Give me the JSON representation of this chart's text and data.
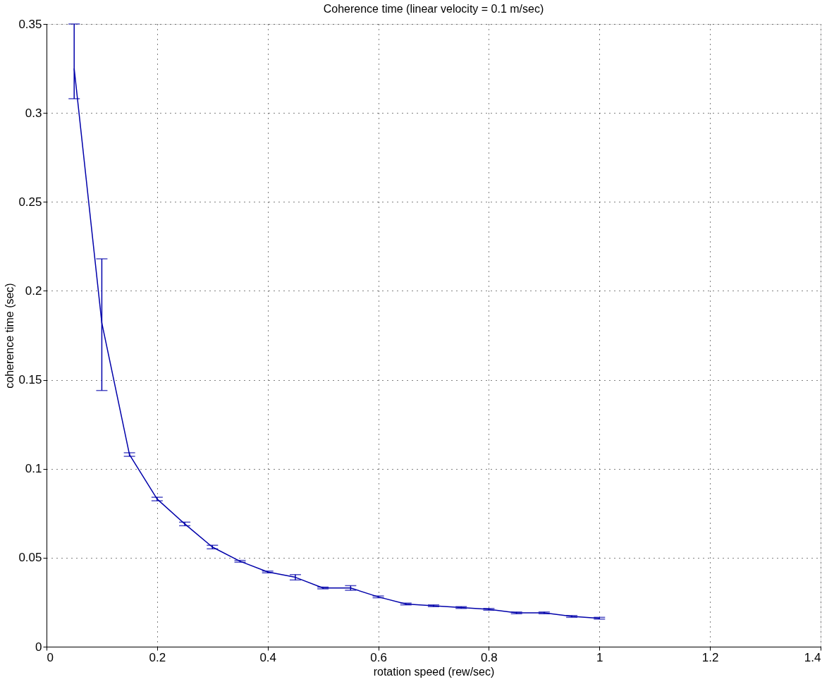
{
  "chart_data": {
    "type": "line",
    "title": "Coherence time (linear velocity = 0.1 m/sec)",
    "xlabel": "rotation speed (rew/sec)",
    "ylabel": "coherence time (sec)",
    "x": [
      0.05,
      0.1,
      0.15,
      0.2,
      0.25,
      0.3,
      0.35,
      0.4,
      0.45,
      0.5,
      0.55,
      0.6,
      0.65,
      0.7,
      0.75,
      0.8,
      0.85,
      0.9,
      0.95,
      1.0
    ],
    "series": [
      {
        "color": "#0000aa",
        "values": [
          0.325,
          0.182,
          0.108,
          0.083,
          0.069,
          0.056,
          0.048,
          0.042,
          0.039,
          0.033,
          0.033,
          0.028,
          0.024,
          0.023,
          0.022,
          0.021,
          0.019,
          0.019,
          0.017,
          0.016
        ],
        "errors": [
          [
            0.308,
            0.35
          ],
          [
            0.144,
            0.218
          ],
          0.001,
          0.001,
          0.001,
          0.001,
          0.0005,
          0.0005,
          0.0015,
          0.0005,
          0.0013,
          0.0005,
          0.0005,
          0.0005,
          0.0005,
          0.0005,
          0.0005,
          0.0005,
          0.0005,
          0.0005
        ]
      }
    ],
    "xlim": [
      0,
      1.4
    ],
    "xticks": [
      0,
      0.2,
      0.4,
      0.6,
      0.8,
      1,
      1.2,
      1.4
    ],
    "ylim": [
      0,
      0.35
    ],
    "yticks": [
      0,
      0.05,
      0.1,
      0.15,
      0.2,
      0.25,
      0.3,
      0.35
    ],
    "grid": true,
    "marker": "none",
    "line_style": "solid"
  }
}
